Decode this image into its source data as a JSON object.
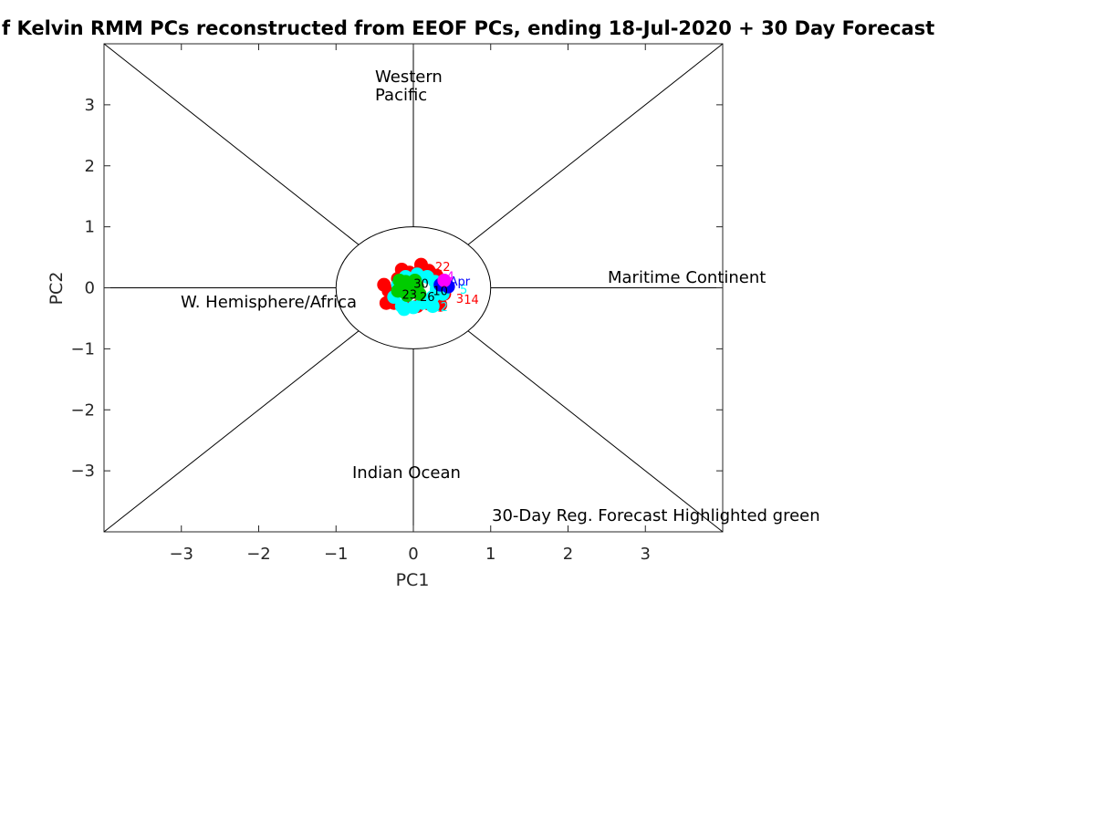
{
  "chart_data": {
    "type": "scatter",
    "title": "f Kelvin RMM PCs reconstructed from  EEOF PCs, ending 18-Jul-2020 + 30 Day Forecast",
    "xlabel": "PC1",
    "ylabel": "PC2",
    "xlim": [
      -4,
      4
    ],
    "ylim": [
      -4,
      4
    ],
    "xticks": [
      -3,
      -2,
      -1,
      0,
      1,
      2,
      3
    ],
    "yticks": [
      -3,
      -2,
      -1,
      0,
      1,
      2,
      3
    ],
    "xtick_labels": [
      "−3",
      "−2",
      "−1",
      "0",
      "1",
      "2",
      "3"
    ],
    "ytick_labels": [
      "−3",
      "−2",
      "−1",
      "0",
      "1",
      "2",
      "3"
    ],
    "grid": false,
    "unit_circle_radius": 1,
    "regions": {
      "western_pacific_line1": "Western",
      "western_pacific_line2": "Pacific",
      "maritime_continent": "Maritime Continent",
      "indian_ocean": "Indian Ocean",
      "w_hemisphere_africa": "W. Hemisphere/Africa"
    },
    "note": "30-Day Reg. Forecast Highlighted green",
    "series": [
      {
        "color": "#ff0000",
        "points": [
          [
            -0.35,
            -0.25
          ],
          [
            -0.32,
            -0.05
          ],
          [
            -0.2,
            0.15
          ],
          [
            -0.05,
            0.25
          ],
          [
            0.1,
            0.32
          ],
          [
            0.2,
            0.28
          ],
          [
            0.3,
            0.2
          ],
          [
            0.38,
            0.05
          ],
          [
            0.4,
            -0.1
          ],
          [
            0.32,
            -0.2
          ],
          [
            0.2,
            -0.26
          ],
          [
            0.05,
            -0.3
          ],
          [
            -0.1,
            -0.3
          ],
          [
            -0.25,
            -0.25
          ],
          [
            0.1,
            0.38
          ],
          [
            -0.15,
            0.3
          ],
          [
            0.35,
            -0.28
          ],
          [
            -0.38,
            0.05
          ]
        ]
      },
      {
        "color": "#00ffff",
        "points": [
          [
            -0.25,
            -0.15
          ],
          [
            -0.2,
            0.05
          ],
          [
            -0.1,
            0.18
          ],
          [
            0.05,
            0.22
          ],
          [
            0.18,
            0.18
          ],
          [
            0.28,
            0.1
          ],
          [
            0.3,
            -0.02
          ],
          [
            0.25,
            -0.15
          ],
          [
            0.12,
            -0.25
          ],
          [
            0.0,
            -0.32
          ],
          [
            -0.12,
            -0.35
          ],
          [
            0.25,
            -0.3
          ],
          [
            0.38,
            -0.1
          ],
          [
            0.42,
            0.0
          ],
          [
            -0.15,
            -0.3
          ]
        ]
      },
      {
        "color": "#00cc00",
        "points": [
          [
            -0.2,
            -0.05
          ],
          [
            -0.15,
            0.05
          ],
          [
            -0.1,
            0.1
          ],
          [
            -0.05,
            0.05
          ],
          [
            0.0,
            -0.05
          ],
          [
            0.05,
            0.02
          ],
          [
            -0.08,
            -0.12
          ],
          [
            0.02,
            0.12
          ],
          [
            -0.18,
            0.12
          ],
          [
            0.08,
            -0.1
          ]
        ]
      },
      {
        "color": "#0000ff",
        "points": [
          [
            0.35,
            0.05
          ],
          [
            0.45,
            0.02
          ]
        ]
      },
      {
        "color": "#ff00ff",
        "points": [
          [
            0.4,
            0.12
          ]
        ]
      }
    ],
    "day_labels": [
      {
        "text": "22",
        "color": "#ff0000",
        "x": 0.38,
        "y": 0.28
      },
      {
        "text": "14",
        "color": "#ff0000",
        "x": 0.75,
        "y": -0.26
      },
      {
        "text": "3",
        "color": "#ff0000",
        "x": 0.6,
        "y": -0.25
      },
      {
        "text": "12",
        "color": "#00ffff",
        "x": 0.35,
        "y": -0.38
      },
      {
        "text": "8",
        "color": "#00ffff",
        "x": 0.0,
        "y": -0.42
      },
      {
        "text": "5",
        "color": "#00ffff",
        "x": 0.65,
        "y": -0.1
      },
      {
        "text": "26",
        "color": "#000000",
        "x": 0.18,
        "y": -0.22
      },
      {
        "text": "23",
        "color": "#000000",
        "x": -0.05,
        "y": -0.18
      },
      {
        "text": "30",
        "color": "#000000",
        "x": 0.1,
        "y": 0.0
      },
      {
        "text": "10",
        "color": "#000000",
        "x": 0.35,
        "y": -0.12
      },
      {
        "text": "Apr",
        "color": "#0000ff",
        "x": 0.6,
        "y": 0.04
      },
      {
        "text": "4",
        "color": "#ff00ff",
        "x": 0.48,
        "y": 0.12
      }
    ]
  }
}
